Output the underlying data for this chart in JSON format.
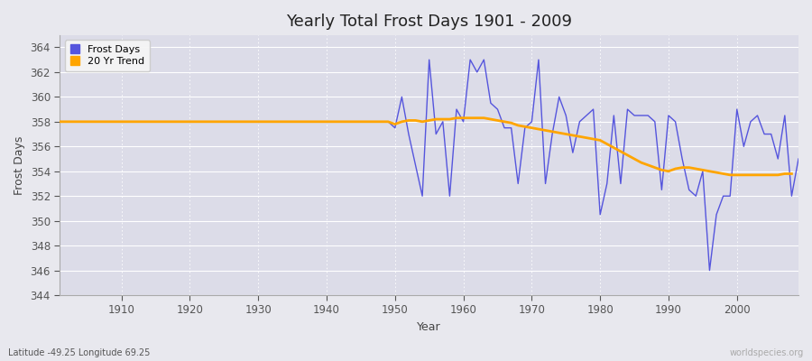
{
  "title": "Yearly Total Frost Days 1901 - 2009",
  "xlabel": "Year",
  "ylabel": "Frost Days",
  "subtitle": "Latitude -49.25 Longitude 69.25",
  "watermark": "worldspecies.org",
  "ylim": [
    344,
    365
  ],
  "yticks": [
    344,
    346,
    348,
    350,
    352,
    354,
    356,
    358,
    360,
    362,
    364
  ],
  "xticks": [
    1910,
    1920,
    1930,
    1940,
    1950,
    1960,
    1970,
    1980,
    1990,
    2000
  ],
  "line_color": "#5555dd",
  "trend_color": "#FFA500",
  "bg_color": "#e8e8ee",
  "plot_bg": "#dcdce8",
  "grid_color": "#ffffff",
  "frost_days": [
    358,
    358,
    358,
    358,
    358,
    358,
    358,
    358,
    358,
    358,
    358,
    358,
    358,
    358,
    358,
    358,
    358,
    358,
    358,
    358,
    358,
    358,
    358,
    358,
    358,
    358,
    358,
    358,
    358,
    358,
    358,
    358,
    358,
    358,
    358,
    358,
    358,
    358,
    358,
    358,
    358,
    358,
    358,
    358,
    358,
    358,
    358,
    358,
    358,
    357.5,
    360,
    357,
    354.5,
    352,
    363,
    357,
    358,
    352,
    359,
    358,
    363,
    362,
    363,
    359.5,
    359,
    357.5,
    357.5,
    353,
    357.5,
    358,
    363,
    353,
    357,
    360,
    358.5,
    355.5,
    358,
    358.5,
    359,
    350.5,
    353,
    358.5,
    353,
    359,
    358.5,
    358.5,
    358.5,
    358,
    352.5,
    358.5,
    358,
    355,
    352.5,
    352,
    354,
    346,
    350.5,
    352,
    352,
    359,
    356,
    358,
    358.5,
    357,
    357,
    355,
    358.5,
    352,
    355
  ],
  "trend_days": [
    358,
    358,
    358,
    358,
    358,
    358,
    358,
    358,
    358,
    358,
    358,
    358,
    358,
    358,
    358,
    358,
    358,
    358,
    358,
    358,
    358,
    358,
    358,
    358,
    358,
    358,
    358,
    358,
    358,
    358,
    358,
    358,
    358,
    358,
    358,
    358,
    358,
    358,
    358,
    358,
    358,
    358,
    358,
    358,
    358,
    358,
    358,
    358,
    358,
    357.8,
    358,
    358.1,
    358.1,
    358,
    358.1,
    358.2,
    358.2,
    358.2,
    358.3,
    358.3,
    358.3,
    358.3,
    358.3,
    358.2,
    358.1,
    358.0,
    357.9,
    357.7,
    357.6,
    357.5,
    357.4,
    357.3,
    357.2,
    357.1,
    357.0,
    356.9,
    356.8,
    356.7,
    356.6,
    356.5,
    356.2,
    355.9,
    355.6,
    355.3,
    355.0,
    354.7,
    354.5,
    354.3,
    354.1,
    354.0,
    354.2,
    354.3,
    354.3,
    354.2,
    354.1,
    354.0,
    353.9,
    353.8,
    353.7,
    353.7,
    353.7,
    353.7,
    353.7,
    353.7,
    353.7,
    353.7,
    353.8,
    353.8,
    null
  ]
}
